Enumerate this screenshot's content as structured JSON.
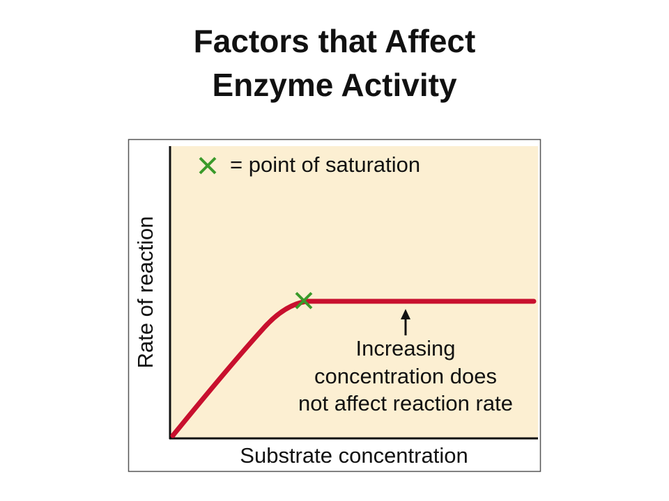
{
  "title": {
    "lines": [
      "Factors that Affect",
      "Enzyme Activity"
    ]
  },
  "graph": {
    "legend": "= point of saturation",
    "y_axis_label": "Rate of reaction",
    "x_axis_label": "Substrate concentration",
    "annotation": {
      "lines": [
        "Increasing",
        "concentration does",
        "not affect reaction rate"
      ]
    }
  }
}
